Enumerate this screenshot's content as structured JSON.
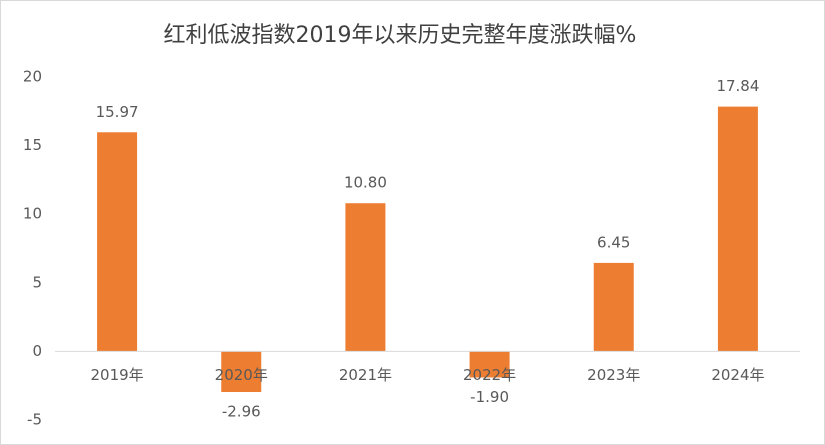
{
  "chart_data": {
    "type": "bar",
    "title": "红利低波指数2019年以来历史完整年度涨跌幅%",
    "categories": [
      "2019年",
      "2020年",
      "2021年",
      "2022年",
      "2023年",
      "2024年"
    ],
    "values": [
      15.97,
      -2.96,
      10.8,
      -1.9,
      6.45,
      17.84
    ],
    "value_labels": [
      "15.97",
      "-2.96",
      "10.80",
      "-1.90",
      "6.45",
      "17.84"
    ],
    "color": "#ed7d31",
    "ylim": [
      -5,
      20
    ],
    "yticks": [
      -5,
      0,
      5,
      10,
      15,
      20
    ],
    "grid": false
  }
}
